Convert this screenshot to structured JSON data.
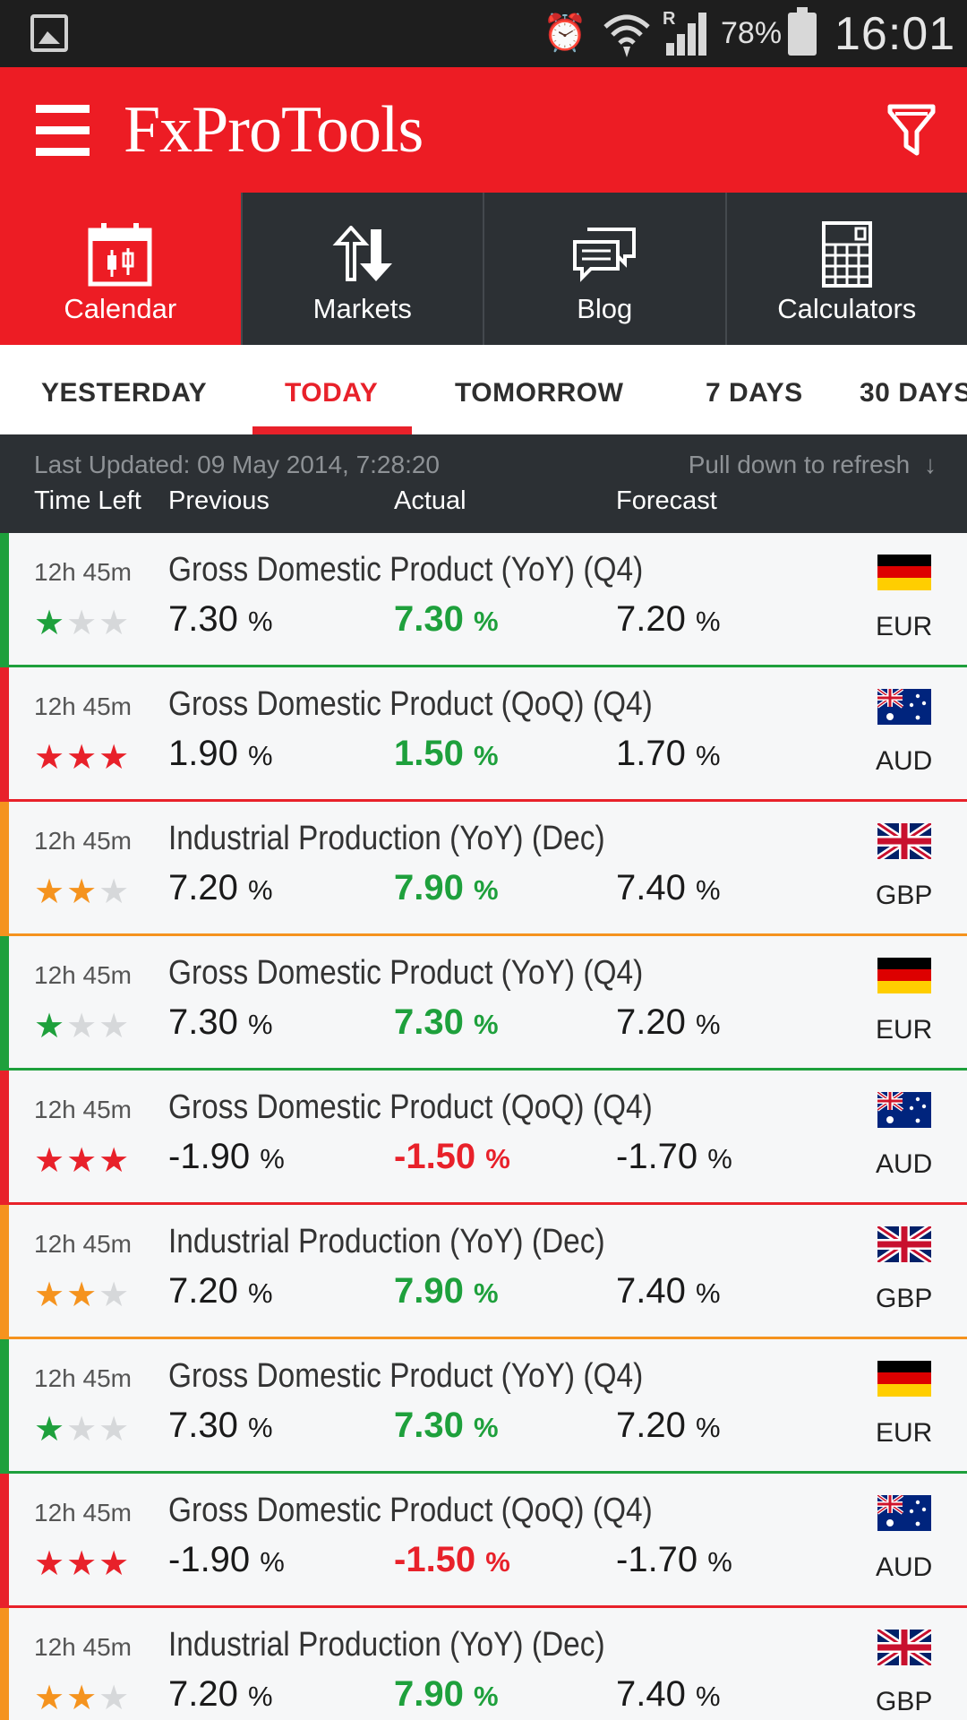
{
  "status_bar": {
    "battery": "78%",
    "time": "16:01",
    "signal_flag": "R"
  },
  "app": {
    "title": "FxProTools"
  },
  "nav": [
    {
      "label": "Calendar",
      "icon": "calendar-icon",
      "active": true
    },
    {
      "label": "Markets",
      "icon": "markets-arrows-icon",
      "active": false
    },
    {
      "label": "Blog",
      "icon": "blog-chat-icon",
      "active": false
    },
    {
      "label": "Calculators",
      "icon": "calculator-icon",
      "active": false
    }
  ],
  "tabs": [
    {
      "label": "YESTERDAY",
      "active": false
    },
    {
      "label": "TODAY",
      "active": true
    },
    {
      "label": "TOMORROW",
      "active": false
    },
    {
      "label": "7 DAYS",
      "active": false
    },
    {
      "label": "30 DAYS",
      "active": false
    }
  ],
  "subheader": {
    "last_updated": "Last Updated: 09 May 2014, 7:28:20",
    "pull_hint": "Pull down to refresh",
    "columns": {
      "time_left": "Time Left",
      "previous": "Previous",
      "actual": "Actual",
      "forecast": "Forecast"
    }
  },
  "colors": {
    "red": "#e8212a",
    "green": "#1ea03c",
    "orange": "#f5931e",
    "star_off": "#d6d8da"
  },
  "events": [
    {
      "time_left": "12h 45m",
      "title": "Gross Domestic Product (YoY) (Q4)",
      "importance": 1,
      "previous": "7.30",
      "actual": "7.30",
      "forecast": "7.20",
      "unit": "%",
      "actual_color": "green",
      "currency": "EUR",
      "flag": "de"
    },
    {
      "time_left": "12h 45m",
      "title": "Gross Domestic Product (QoQ) (Q4)",
      "importance": 3,
      "previous": "1.90",
      "actual": "1.50",
      "forecast": "1.70",
      "unit": "%",
      "actual_color": "green",
      "currency": "AUD",
      "flag": "au"
    },
    {
      "time_left": "12h 45m",
      "title": "Industrial Production (YoY) (Dec)",
      "importance": 2,
      "previous": "7.20",
      "actual": "7.90",
      "forecast": "7.40",
      "unit": "%",
      "actual_color": "green",
      "currency": "GBP",
      "flag": "gb"
    },
    {
      "time_left": "12h 45m",
      "title": "Gross Domestic Product (YoY) (Q4)",
      "importance": 1,
      "previous": "7.30",
      "actual": "7.30",
      "forecast": "7.20",
      "unit": "%",
      "actual_color": "green",
      "currency": "EUR",
      "flag": "de"
    },
    {
      "time_left": "12h 45m",
      "title": "Gross Domestic Product (QoQ) (Q4)",
      "importance": 3,
      "previous": "-1.90",
      "actual": "-1.50",
      "forecast": "-1.70",
      "unit": "%",
      "actual_color": "red",
      "currency": "AUD",
      "flag": "au"
    },
    {
      "time_left": "12h 45m",
      "title": "Industrial Production (YoY) (Dec)",
      "importance": 2,
      "previous": "7.20",
      "actual": "7.90",
      "forecast": "7.40",
      "unit": "%",
      "actual_color": "green",
      "currency": "GBP",
      "flag": "gb"
    },
    {
      "time_left": "12h 45m",
      "title": "Gross Domestic Product (YoY) (Q4)",
      "importance": 1,
      "previous": "7.30",
      "actual": "7.30",
      "forecast": "7.20",
      "unit": "%",
      "actual_color": "green",
      "currency": "EUR",
      "flag": "de"
    },
    {
      "time_left": "12h 45m",
      "title": "Gross Domestic Product (QoQ) (Q4)",
      "importance": 3,
      "previous": "-1.90",
      "actual": "-1.50",
      "forecast": "-1.70",
      "unit": "%",
      "actual_color": "red",
      "currency": "AUD",
      "flag": "au"
    },
    {
      "time_left": "12h 45m",
      "title": "Industrial Production (YoY) (Dec)",
      "importance": 2,
      "previous": "7.20",
      "actual": "7.90",
      "forecast": "7.40",
      "unit": "%",
      "actual_color": "green",
      "currency": "GBP",
      "flag": "gb"
    }
  ]
}
